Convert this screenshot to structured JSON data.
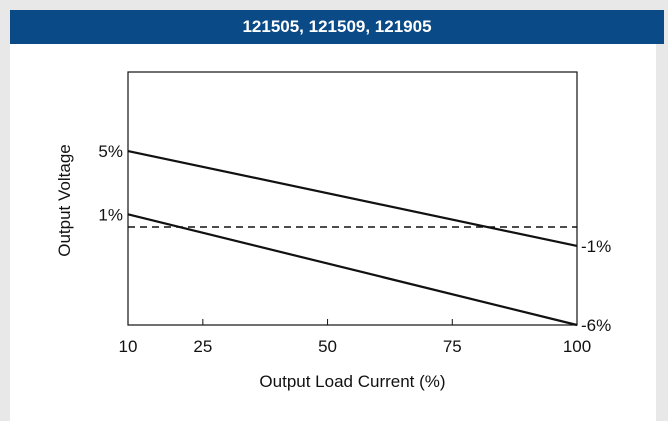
{
  "chart_data": {
    "type": "line",
    "title": "121505, 121509, 121905",
    "xlabel": "Output Load Current (%)",
    "ylabel": "Output Voltage",
    "x_ticks": [
      "10",
      "25",
      "50",
      "75",
      "100"
    ],
    "x_tick_values": [
      10,
      25,
      50,
      75,
      100
    ],
    "xlim": [
      10,
      100
    ],
    "y_left_ticks": [
      {
        "label": "5%",
        "value": 5
      },
      {
        "label": "1%",
        "value": 1
      }
    ],
    "y_right_ticks": [
      {
        "label": "-1%",
        "value": -1
      },
      {
        "label": "-6%",
        "value": -6
      }
    ],
    "ylim": [
      -6,
      10
    ],
    "series": [
      {
        "x": [
          10,
          100
        ],
        "y": [
          5,
          -1
        ],
        "style": "solid"
      },
      {
        "x": [
          10,
          100
        ],
        "y": [
          1,
          -6
        ],
        "style": "solid"
      },
      {
        "x": [
          10,
          100
        ],
        "y": [
          0.2,
          0.2
        ],
        "style": "dashed"
      }
    ],
    "grid": false
  }
}
